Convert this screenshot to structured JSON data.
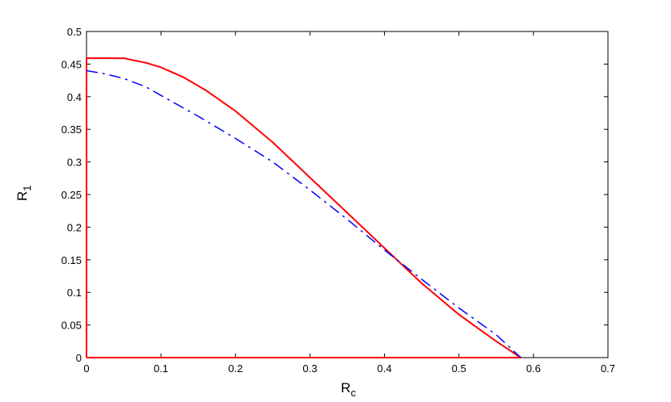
{
  "chart_data": {
    "type": "line",
    "xlabel": "R",
    "xlabel_sub": "c",
    "ylabel": "R",
    "ylabel_sub": "1",
    "xlim": [
      0,
      0.7
    ],
    "ylim": [
      0,
      0.5
    ],
    "xticks": [
      "0",
      "0.1",
      "0.2",
      "0.3",
      "0.4",
      "0.5",
      "0.6",
      "0.7"
    ],
    "yticks": [
      "0",
      "0.05",
      "0.1",
      "0.15",
      "0.2",
      "0.25",
      "0.3",
      "0.35",
      "0.4",
      "0.45",
      "0.5"
    ],
    "grid": false,
    "series": [
      {
        "style": "solid",
        "color": "#ff0000",
        "x": [
          0,
          0,
          0.05,
          0.08,
          0.1,
          0.13,
          0.16,
          0.2,
          0.25,
          0.3,
          0.35,
          0.4,
          0.45,
          0.5,
          0.55,
          0.583,
          0.583,
          0
        ],
        "y": [
          0,
          0.459,
          0.459,
          0.452,
          0.445,
          0.43,
          0.41,
          0.378,
          0.33,
          0.276,
          0.222,
          0.168,
          0.114,
          0.066,
          0.025,
          0,
          0,
          0
        ]
      },
      {
        "style": "dash-dot",
        "color": "#0000ff",
        "x": [
          0,
          0.025,
          0.05,
          0.08,
          0.1,
          0.15,
          0.2,
          0.25,
          0.3,
          0.35,
          0.4,
          0.45,
          0.5,
          0.55,
          0.583
        ],
        "y": [
          0.44,
          0.435,
          0.428,
          0.415,
          0.402,
          0.37,
          0.336,
          0.3,
          0.257,
          0.212,
          0.165,
          0.12,
          0.076,
          0.035,
          0
        ]
      }
    ]
  }
}
